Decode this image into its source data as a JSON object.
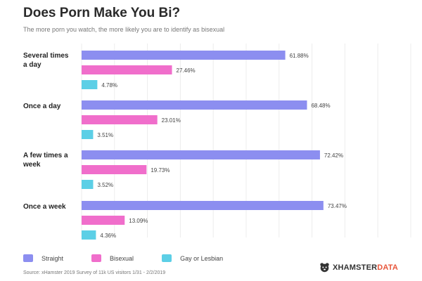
{
  "title": "Does Porn Make You Bi?",
  "subtitle": "The more porn you watch, the more likely you are to identify as bisexual",
  "chart_data": {
    "type": "bar",
    "orientation": "horizontal",
    "xlim": [
      0,
      100
    ],
    "grid": true,
    "legend_placement": "bottom-left",
    "categories": [
      [
        "Several times",
        "a day"
      ],
      [
        "Once a day"
      ],
      [
        "A few times a",
        "week"
      ],
      [
        "Once a week"
      ]
    ],
    "series": [
      {
        "name": "Straight",
        "color": "#8c8ef0",
        "values": [
          61.88,
          68.48,
          72.42,
          73.47
        ],
        "labels": [
          "61.88%",
          "68.48%",
          "72.42%",
          "73.47%"
        ]
      },
      {
        "name": "Bisexual",
        "color": "#f06ecb",
        "values": [
          27.46,
          23.01,
          19.73,
          13.09
        ],
        "labels": [
          "27.46%",
          "23.01%",
          "19.73%",
          "13.09%"
        ]
      },
      {
        "name": "Gay or Lesbian",
        "color": "#5ccfe6",
        "values": [
          4.78,
          3.51,
          3.52,
          4.36
        ],
        "labels": [
          "4.78%",
          "3.51%",
          "3.52%",
          "4.36%"
        ]
      }
    ]
  },
  "source": "Source: xHamster 2019 Survey of 11k US visitors 1/31 - 2/2/2019",
  "logo": {
    "brand": "XHAMSTER",
    "suffix": "DATA",
    "icon": "hamster-icon"
  }
}
